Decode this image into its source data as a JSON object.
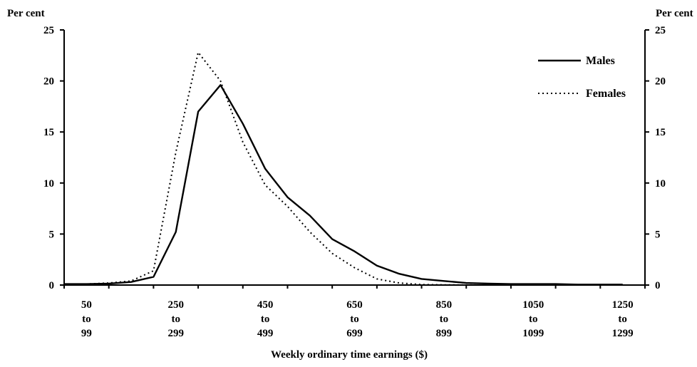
{
  "chart_data": {
    "type": "line",
    "title": "",
    "xlabel": "Weekly ordinary time earnings ($)",
    "ylabel_left": "Per cent",
    "ylabel_right": "Per cent",
    "ylim": [
      0,
      25
    ],
    "yticks": [
      0,
      5,
      10,
      15,
      20,
      25
    ],
    "xlim": [
      0,
      1300
    ],
    "x_tick_positions": [
      50,
      250,
      450,
      650,
      850,
      1050,
      1250
    ],
    "x_tick_labels": [
      [
        "50",
        "to",
        "99"
      ],
      [
        "250",
        "to",
        "299"
      ],
      [
        "450",
        "to",
        "499"
      ],
      [
        "650",
        "to",
        "699"
      ],
      [
        "850",
        "to",
        "899"
      ],
      [
        "1050",
        "to",
        "1099"
      ],
      [
        "1250",
        "to",
        "1299"
      ]
    ],
    "legend_position": "top-right",
    "grid": false,
    "x": [
      0,
      50,
      100,
      150,
      200,
      250,
      300,
      350,
      400,
      450,
      500,
      550,
      600,
      650,
      700,
      750,
      800,
      850,
      900,
      950,
      1000,
      1050,
      1100,
      1150,
      1200,
      1250
    ],
    "series": [
      {
        "name": "Males",
        "style": "solid",
        "color": "#000000",
        "values": [
          0.1,
          0.1,
          0.15,
          0.3,
          0.8,
          5.2,
          17.0,
          19.6,
          15.8,
          11.4,
          8.6,
          6.8,
          4.5,
          3.3,
          1.9,
          1.1,
          0.6,
          0.4,
          0.2,
          0.15,
          0.1,
          0.1,
          0.1,
          0.05,
          0.05,
          0.05
        ]
      },
      {
        "name": "Females",
        "style": "dotted",
        "color": "#000000",
        "values": [
          0.1,
          0.1,
          0.2,
          0.4,
          1.4,
          13.0,
          22.8,
          20.0,
          14.0,
          9.8,
          7.7,
          5.2,
          3.1,
          1.7,
          0.6,
          0.2,
          0.05,
          0.02,
          0.01,
          0.0,
          0.0,
          0.0,
          0.0,
          0.0,
          0.0,
          0.0
        ]
      }
    ]
  }
}
